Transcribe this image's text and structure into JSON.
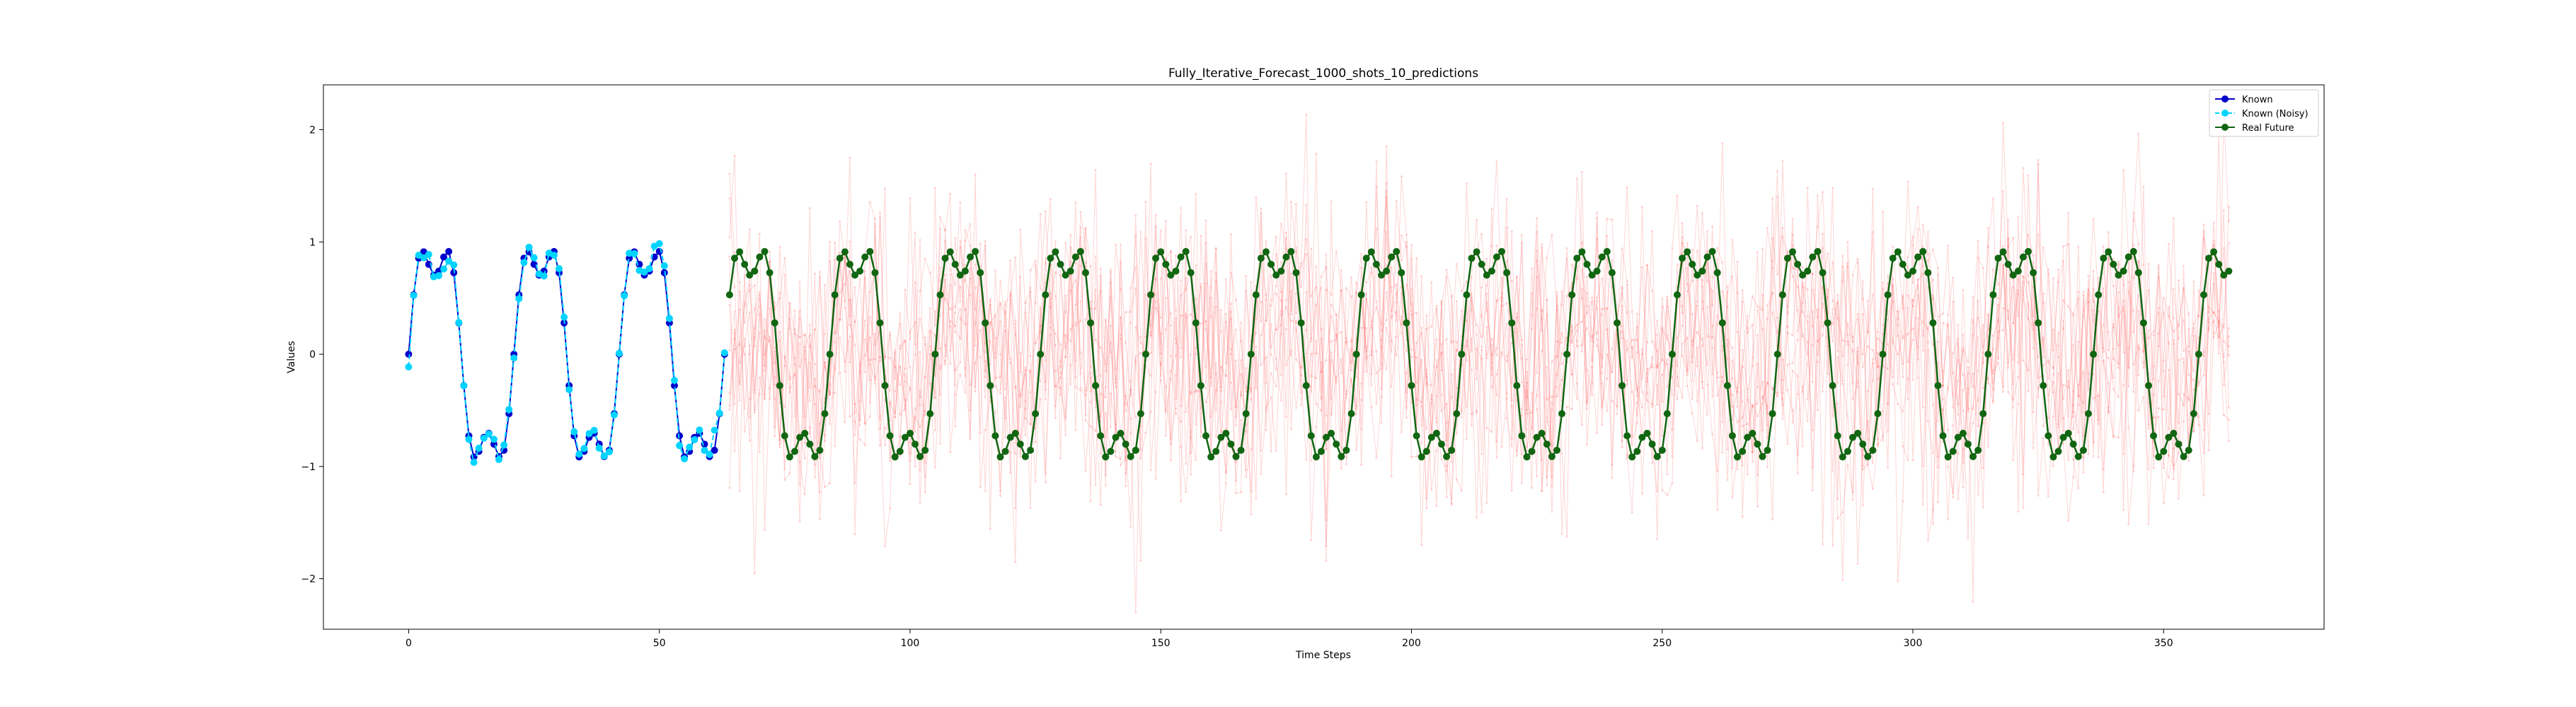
{
  "chart_data": {
    "type": "line",
    "title": "Fully_Iterative_Forecast_1000_shots_10_predictions",
    "xlabel": "Time Steps",
    "ylabel": "Values",
    "xlim": [
      -17,
      382
    ],
    "ylim": [
      -2.45,
      2.4
    ],
    "x_ticks": [
      0,
      50,
      100,
      150,
      200,
      250,
      300,
      350
    ],
    "y_ticks": [
      -2,
      -1,
      0,
      1,
      2
    ],
    "grid": false,
    "legend_position": "top-right",
    "signal": {
      "description_formula": "sin(2*pi*t/21)+0.3*sin(2*pi*t/7)",
      "known_range": [
        0,
        63
      ],
      "future_range": [
        64,
        363
      ]
    },
    "prediction_runs": {
      "count": 10,
      "x_range": [
        64,
        363
      ],
      "approx_range": [
        -2.3,
        2.2
      ]
    },
    "series": [
      {
        "name": "Known",
        "color": "#0000cc",
        "marker": "circle",
        "line": "solid"
      },
      {
        "name": "Known (Noisy)",
        "color": "#00d4ff",
        "marker": "circle",
        "line": "dashed"
      },
      {
        "name": "Real Future",
        "color": "#116611",
        "marker": "circle",
        "line": "solid"
      }
    ],
    "prediction_color": "#ff6b6b"
  }
}
